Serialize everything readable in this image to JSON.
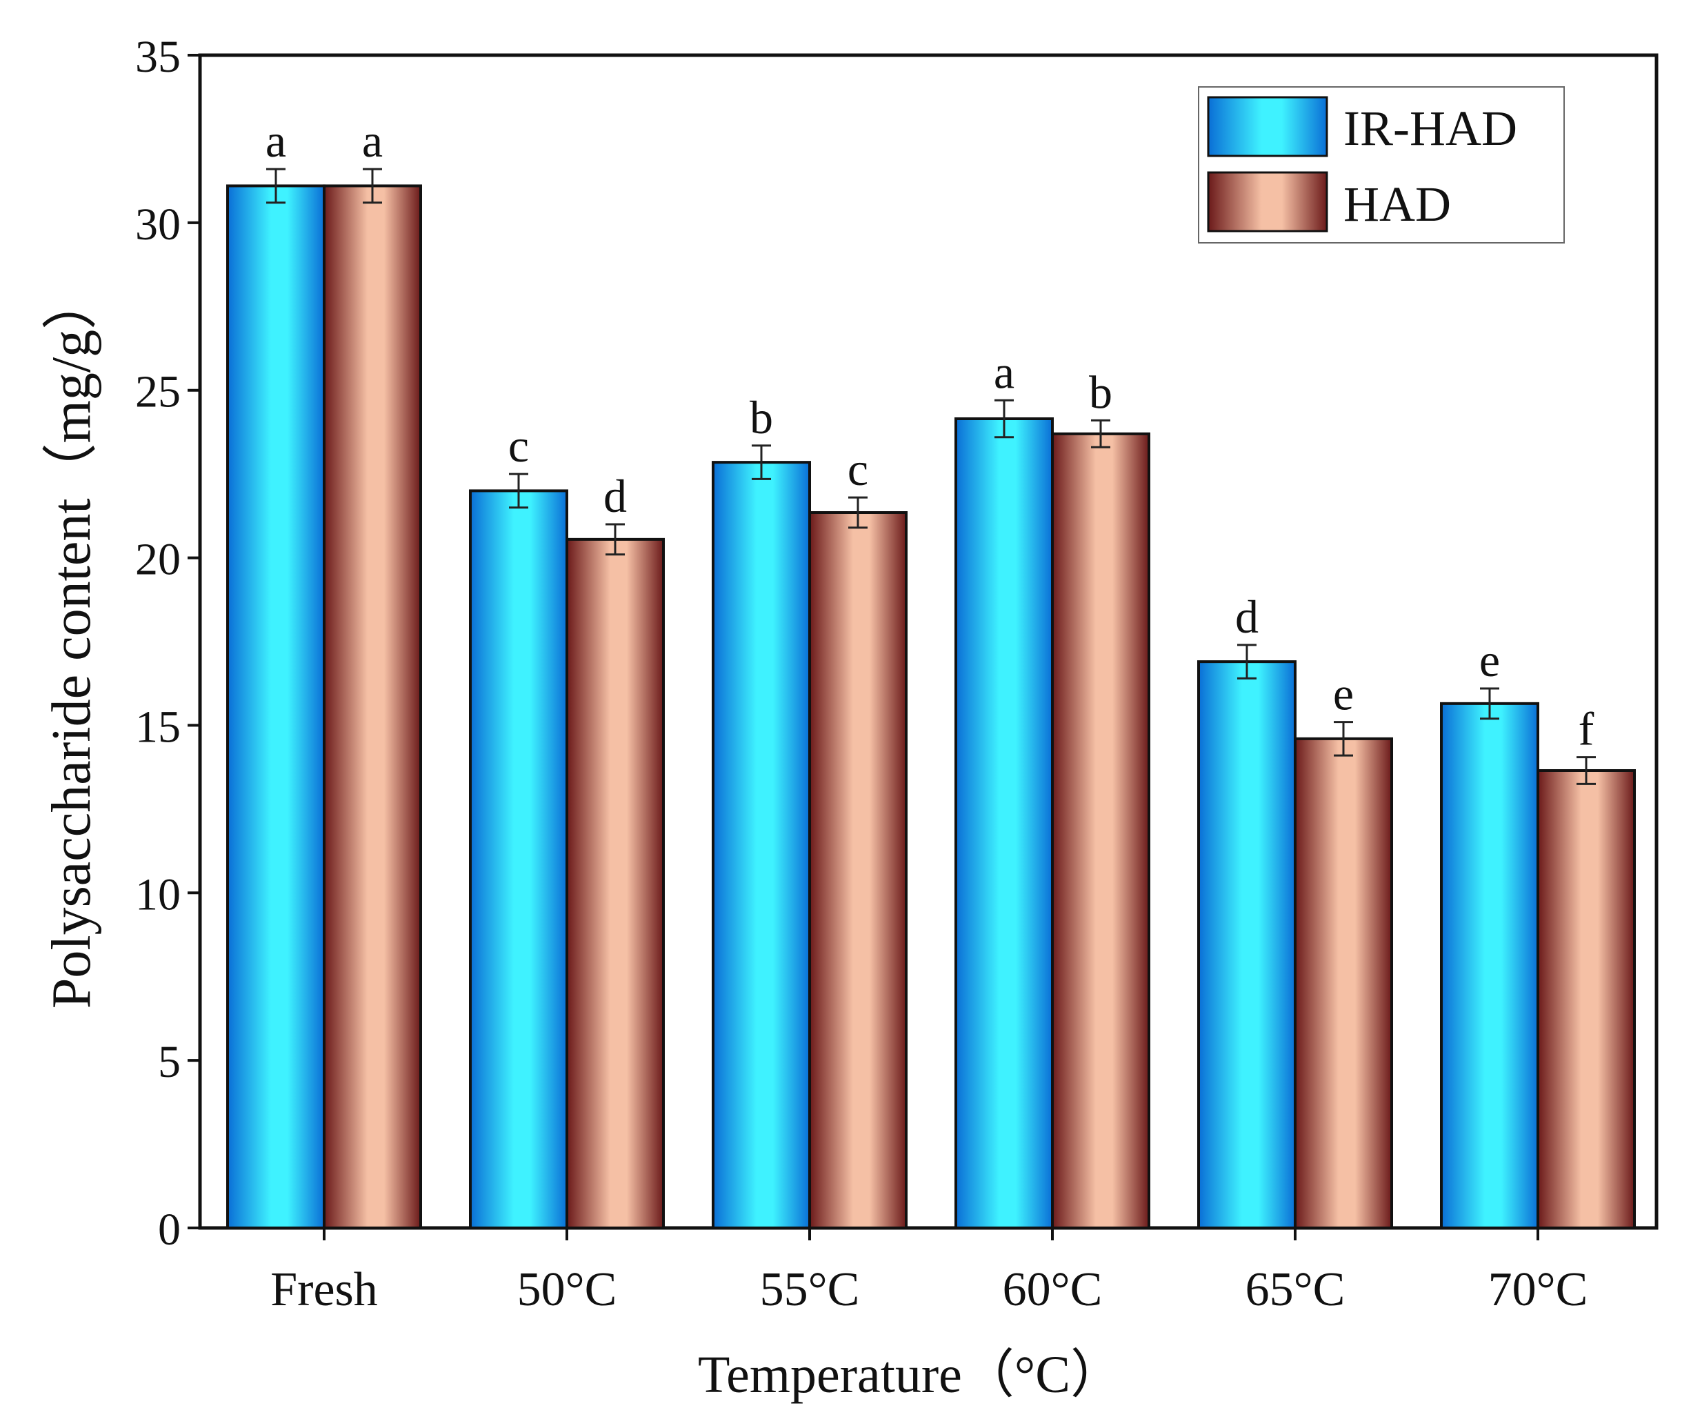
{
  "chart_data": {
    "type": "bar",
    "title": "",
    "xlabel": "Temperature（°C）",
    "ylabel": "Polysaccharide content（mg/g）",
    "ylim": [
      0,
      35
    ],
    "yticks": [
      0,
      5,
      10,
      15,
      20,
      25,
      30,
      35
    ],
    "categories": [
      "Fresh",
      "50°C",
      "55°C",
      "60°C",
      "65°C",
      "70°C"
    ],
    "series": [
      {
        "name": "IR-HAD",
        "values": [
          31.1,
          22.0,
          22.85,
          24.15,
          16.9,
          15.65
        ],
        "errors": [
          0.5,
          0.5,
          0.5,
          0.55,
          0.5,
          0.45
        ],
        "letters": [
          "a",
          "c",
          "b",
          "a",
          "d",
          "e"
        ]
      },
      {
        "name": "HAD",
        "values": [
          31.1,
          20.55,
          21.35,
          23.7,
          14.6,
          13.65
        ],
        "errors": [
          0.5,
          0.45,
          0.45,
          0.4,
          0.5,
          0.4
        ],
        "letters": [
          "a",
          "d",
          "c",
          "b",
          "e",
          "f"
        ]
      }
    ],
    "legend": "top-right",
    "grid": false,
    "colors": {
      "IR-HAD": {
        "edge": "#0a6fd6",
        "center": "#3ff2ff"
      },
      "HAD": {
        "edge": "#6b1a1a",
        "center": "#f5c0a5"
      }
    }
  }
}
